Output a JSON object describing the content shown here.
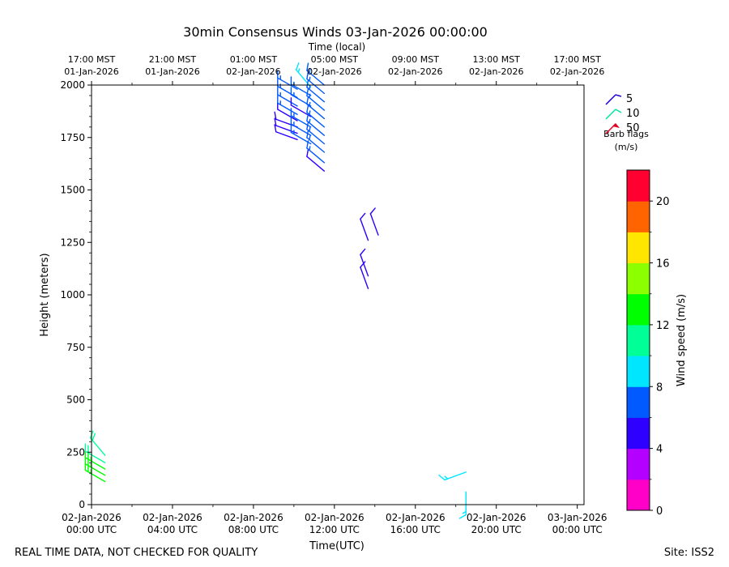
{
  "chart_data": {
    "type": "wind-barb",
    "title": "30min Consensus Winds 03-Jan-2026 00:00:00",
    "top_axis_label": "Time (local)",
    "xlabel": "Time(UTC)",
    "ylabel": "Height (meters)",
    "x_range_hours": [
      0,
      73
    ],
    "ylim": [
      0,
      2000
    ],
    "y_ticks": [
      0,
      250,
      500,
      750,
      1000,
      1250,
      1500,
      1750,
      2000
    ],
    "x_ticks_utc": [
      {
        "hour": 0,
        "line1": "02-Jan-2026",
        "line2": "00:00 UTC"
      },
      {
        "hour": 12,
        "line1": "02-Jan-2026",
        "line2": "04:00 UTC"
      },
      {
        "hour": 24,
        "line1": "02-Jan-2026",
        "line2": "08:00 UTC"
      },
      {
        "hour": 36,
        "line1": "02-Jan-2026",
        "line2": "12:00 UTC"
      },
      {
        "hour": 48,
        "line1": "02-Jan-2026",
        "line2": "16:00 UTC"
      },
      {
        "hour": 60,
        "line1": "02-Jan-2026",
        "line2": "20:00 UTC"
      },
      {
        "hour": 72,
        "line1": "03-Jan-2026",
        "line2": "00:00 UTC"
      }
    ],
    "x_ticks_local": [
      {
        "hour": 0,
        "line1": "17:00 MST",
        "line2": "01-Jan-2026"
      },
      {
        "hour": 12,
        "line1": "21:00 MST",
        "line2": "01-Jan-2026"
      },
      {
        "hour": 24,
        "line1": "01:00 MST",
        "line2": "02-Jan-2026"
      },
      {
        "hour": 36,
        "line1": "05:00 MST",
        "line2": "02-Jan-2026"
      },
      {
        "hour": 48,
        "line1": "09:00 MST",
        "line2": "02-Jan-2026"
      },
      {
        "hour": 60,
        "line1": "13:00 MST",
        "line2": "02-Jan-2026"
      },
      {
        "hour": 72,
        "line1": "17:00 MST",
        "line2": "02-Jan-2026"
      }
    ],
    "barb_legend": {
      "items": [
        {
          "label": "5",
          "color": "#1f00d6"
        },
        {
          "label": "10",
          "color": "#00e6a0"
        },
        {
          "label": "50",
          "color": "#e00020"
        }
      ],
      "caption_line1": "Barb flags",
      "caption_line2": "(m/s)"
    },
    "colorbar": {
      "label": "Wind speed (m/s)",
      "min": 0,
      "max": 22,
      "step": 2,
      "tick_values": [
        0,
        4,
        8,
        12,
        16,
        20
      ],
      "colors": [
        "#ff00c8",
        "#b400ff",
        "#2d00ff",
        "#005aff",
        "#00e6ff",
        "#00ff96",
        "#00ff00",
        "#8cff00",
        "#ffe600",
        "#ff6400",
        "#ff0030"
      ]
    },
    "barbs": [
      {
        "hour": 2,
        "height": 110,
        "speed": 13,
        "dir": 300
      },
      {
        "hour": 2,
        "height": 140,
        "speed": 13,
        "dir": 300
      },
      {
        "hour": 2,
        "height": 170,
        "speed": 12.5,
        "dir": 300
      },
      {
        "hour": 2,
        "height": 200,
        "speed": 11,
        "dir": 300
      },
      {
        "hour": 2,
        "height": 235,
        "speed": 10,
        "dir": 320
      },
      {
        "hour": 30.5,
        "height": 1740,
        "speed": 5,
        "dir": 290
      },
      {
        "hour": 30.5,
        "height": 1770,
        "speed": 5,
        "dir": 290
      },
      {
        "hour": 30.5,
        "height": 1800,
        "speed": 5,
        "dir": 290
      },
      {
        "hour": 30.5,
        "height": 1830,
        "speed": 5,
        "dir": 300
      },
      {
        "hour": 30.5,
        "height": 1860,
        "speed": 6.5,
        "dir": 300
      },
      {
        "hour": 30.5,
        "height": 1900,
        "speed": 7,
        "dir": 300
      },
      {
        "hour": 30.5,
        "height": 1940,
        "speed": 7,
        "dir": 300
      },
      {
        "hour": 30.5,
        "height": 1980,
        "speed": 7,
        "dir": 300
      },
      {
        "hour": 32.5,
        "height": 1720,
        "speed": 7,
        "dir": 300
      },
      {
        "hour": 32.5,
        "height": 1760,
        "speed": 7,
        "dir": 300
      },
      {
        "hour": 32.5,
        "height": 1800,
        "speed": 7,
        "dir": 300
      },
      {
        "hour": 32.5,
        "height": 1850,
        "speed": 5.5,
        "dir": 300
      },
      {
        "hour": 32.5,
        "height": 1900,
        "speed": 7,
        "dir": 300
      },
      {
        "hour": 32.5,
        "height": 1950,
        "speed": 7,
        "dir": 300
      },
      {
        "hour": 32.5,
        "height": 1990,
        "speed": 8,
        "dir": 320
      },
      {
        "hour": 34.5,
        "height": 1590,
        "speed": 5,
        "dir": 310
      },
      {
        "hour": 34.5,
        "height": 1630,
        "speed": 7,
        "dir": 310
      },
      {
        "hour": 34.5,
        "height": 1680,
        "speed": 7,
        "dir": 310
      },
      {
        "hour": 34.5,
        "height": 1720,
        "speed": 7,
        "dir": 310
      },
      {
        "hour": 34.5,
        "height": 1760,
        "speed": 7,
        "dir": 310
      },
      {
        "hour": 34.5,
        "height": 1800,
        "speed": 7,
        "dir": 310
      },
      {
        "hour": 34.5,
        "height": 1840,
        "speed": 7,
        "dir": 310
      },
      {
        "hour": 34.5,
        "height": 1880,
        "speed": 7,
        "dir": 310
      },
      {
        "hour": 34.5,
        "height": 1920,
        "speed": 7,
        "dir": 310
      },
      {
        "hour": 34.5,
        "height": 1960,
        "speed": 7,
        "dir": 310
      },
      {
        "hour": 34.5,
        "height": 2000,
        "speed": 7,
        "dir": 310
      },
      {
        "hour": 41,
        "height": 1030,
        "speed": 5,
        "dir": 340
      },
      {
        "hour": 41,
        "height": 1090,
        "speed": 5,
        "dir": 340
      },
      {
        "hour": 41,
        "height": 1260,
        "speed": 5,
        "dir": 340
      },
      {
        "hour": 42.5,
        "height": 1285,
        "speed": 5,
        "dir": 340
      },
      {
        "hour": 55.5,
        "height": 60,
        "speed": 9,
        "dir": 180
      },
      {
        "hour": 55.5,
        "height": 155,
        "speed": 9,
        "dir": 250
      }
    ]
  },
  "footer": {
    "left": "REAL TIME DATA, NOT CHECKED FOR QUALITY",
    "right": "Site: ISS2"
  }
}
